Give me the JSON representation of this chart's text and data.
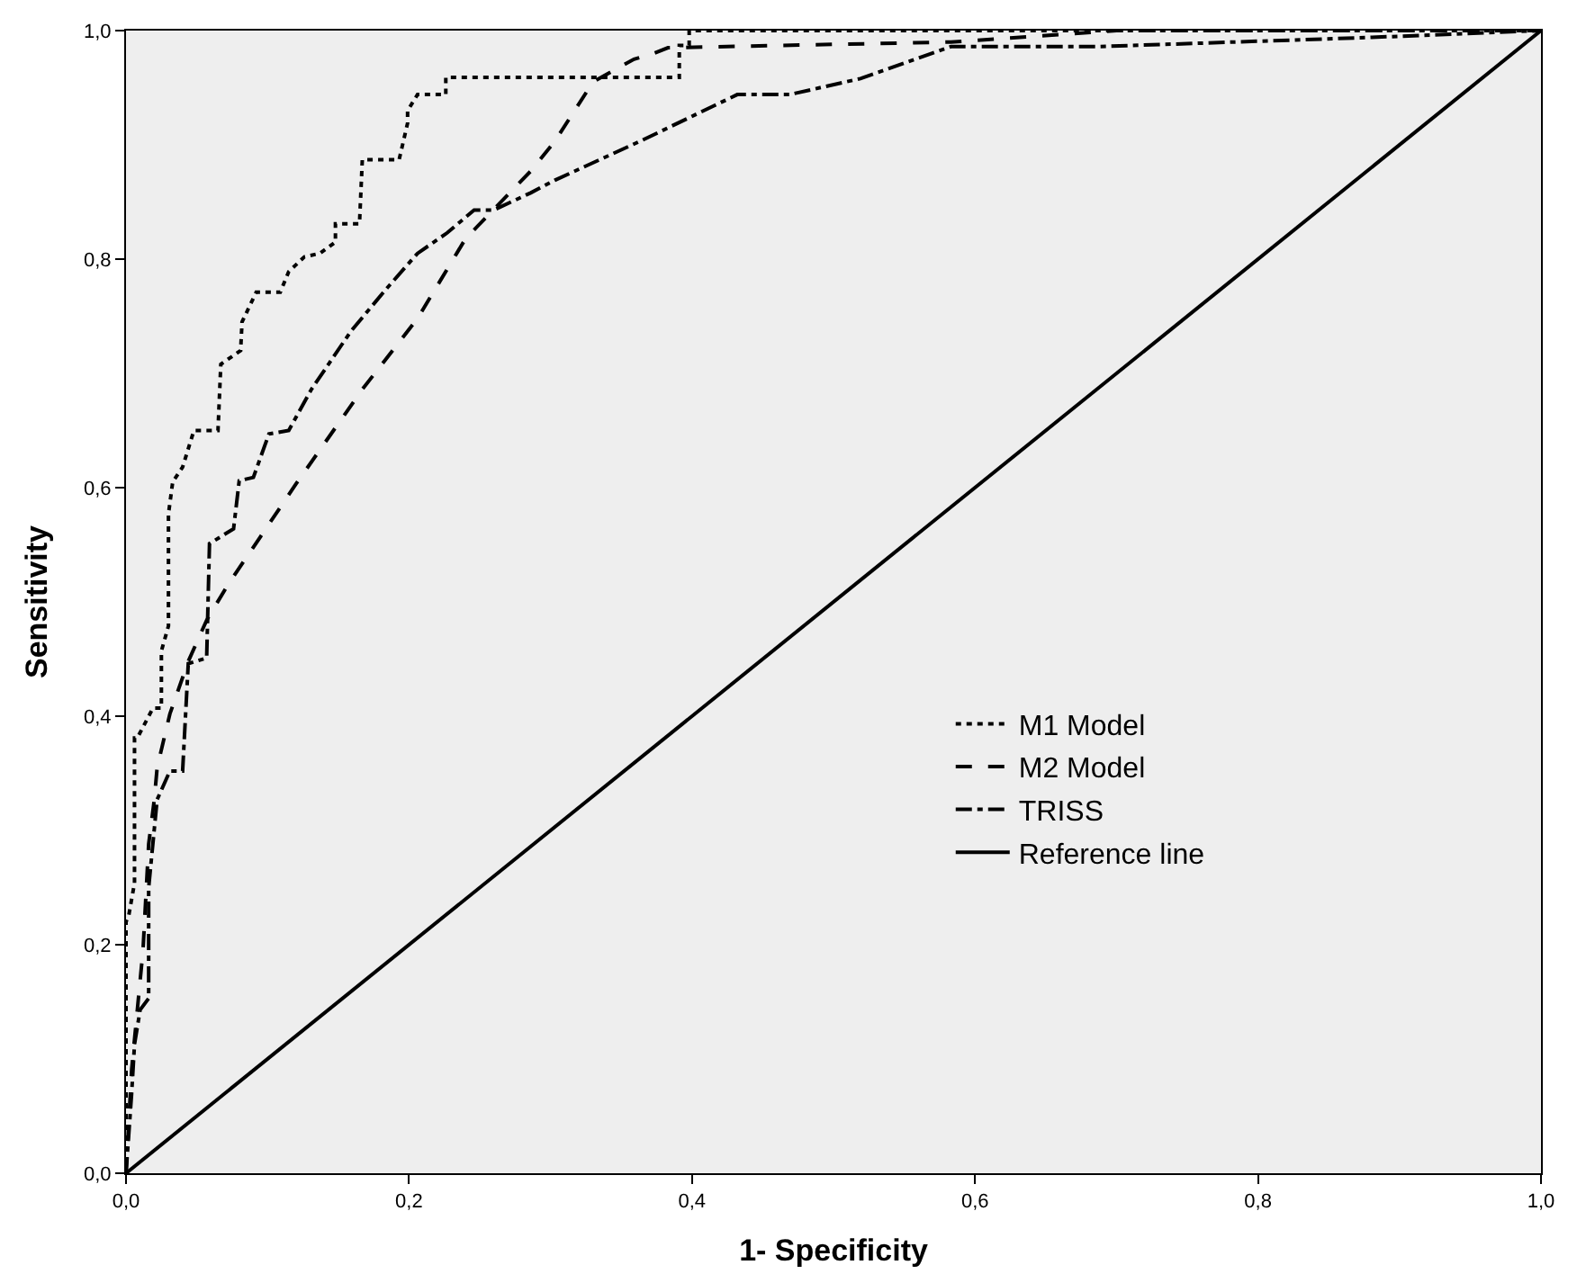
{
  "chart_data": {
    "type": "line",
    "xlabel": "1- Specificity",
    "ylabel": "Sensitivity",
    "xlim": [
      0,
      1
    ],
    "ylim": [
      0,
      1
    ],
    "xticks": [
      {
        "value": 0,
        "label": "0,0"
      },
      {
        "value": 0.2,
        "label": "0,2"
      },
      {
        "value": 0.4,
        "label": "0,4"
      },
      {
        "value": 0.6,
        "label": "0,6"
      },
      {
        "value": 0.8,
        "label": "0,8"
      },
      {
        "value": 1,
        "label": "1,0"
      }
    ],
    "yticks": [
      {
        "value": 0,
        "label": "0,0"
      },
      {
        "value": 0.2,
        "label": "0,2"
      },
      {
        "value": 0.4,
        "label": "0,4"
      },
      {
        "value": 0.6,
        "label": "0,6"
      },
      {
        "value": 0.8,
        "label": "0,8"
      },
      {
        "value": 1,
        "label": "1,0"
      }
    ],
    "grid": false,
    "legend": "bottom right",
    "marker": "none",
    "series": [
      {
        "name": "M1 Model",
        "color": "#000000",
        "line_style": "dotted",
        "x": [
          0,
          0,
          0.002,
          0.006,
          0.006,
          0.008,
          0.019,
          0.025,
          0.025,
          0.03,
          0.03,
          0.033,
          0.04,
          0.048,
          0.065,
          0.067,
          0.081,
          0.082,
          0.092,
          0.109,
          0.115,
          0.126,
          0.137,
          0.148,
          0.148,
          0.165,
          0.167,
          0.193,
          0.199,
          0.199,
          0.206,
          0.226,
          0.226,
          0.391,
          0.391,
          0.398,
          0.398,
          1
        ],
        "values": [
          0,
          0.22,
          0.226,
          0.254,
          0.381,
          0.381,
          0.407,
          0.407,
          0.457,
          0.479,
          0.577,
          0.605,
          0.618,
          0.65,
          0.65,
          0.708,
          0.72,
          0.745,
          0.771,
          0.771,
          0.789,
          0.802,
          0.805,
          0.815,
          0.831,
          0.831,
          0.887,
          0.887,
          0.919,
          0.93,
          0.944,
          0.944,
          0.959,
          0.959,
          0.987,
          0.987,
          1,
          1
        ]
      },
      {
        "name": "M2 Model",
        "color": "#000000",
        "line_style": "dashed",
        "x": [
          0,
          0.004,
          0.008,
          0.012,
          0.016,
          0.02,
          0.022,
          0.031,
          0.044,
          0.057,
          0.072,
          0.095,
          0.12,
          0.167,
          0.206,
          0.24,
          0.286,
          0.303,
          0.33,
          0.359,
          0.373,
          0.383,
          0.583,
          0.7,
          1
        ],
        "values": [
          0,
          0.091,
          0.143,
          0.195,
          0.288,
          0.327,
          0.355,
          0.402,
          0.448,
          0.484,
          0.515,
          0.557,
          0.603,
          0.686,
          0.748,
          0.818,
          0.877,
          0.903,
          0.955,
          0.975,
          0.98,
          0.985,
          0.99,
          1,
          1
        ]
      },
      {
        "name": "TRISS",
        "color": "#000000",
        "line_style": "dashdot",
        "x": [
          0,
          0.004,
          0.006,
          0.01,
          0.016,
          0.016,
          0.022,
          0.031,
          0.04,
          0.044,
          0.057,
          0.059,
          0.076,
          0.08,
          0.09,
          0.101,
          0.115,
          0.131,
          0.159,
          0.184,
          0.206,
          0.227,
          0.246,
          0.26,
          0.286,
          0.303,
          0.363,
          0.432,
          0.469,
          0.519,
          0.583,
          0.688,
          0.879,
          1
        ],
        "values": [
          0,
          0.07,
          0.113,
          0.143,
          0.153,
          0.25,
          0.327,
          0.352,
          0.352,
          0.446,
          0.451,
          0.551,
          0.564,
          0.606,
          0.609,
          0.647,
          0.65,
          0.686,
          0.737,
          0.774,
          0.805,
          0.823,
          0.843,
          0.843,
          0.858,
          0.869,
          0.903,
          0.944,
          0.944,
          0.958,
          0.986,
          0.986,
          0.994,
          1
        ]
      },
      {
        "name": "Reference line",
        "color": "#000000",
        "line_style": "solid",
        "x": [
          0,
          1
        ],
        "values": [
          0,
          1
        ]
      }
    ]
  }
}
